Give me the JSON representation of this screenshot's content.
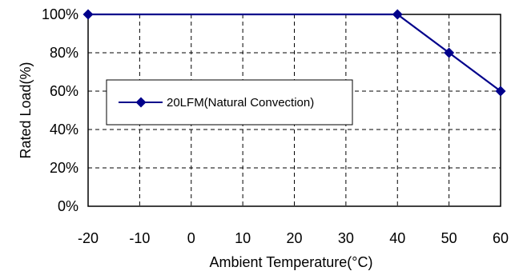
{
  "chart_data": {
    "type": "line",
    "xlabel": "Ambient Temperature(°C)",
    "ylabel": "Rated Load(%)",
    "x_ticks": [
      "-20",
      "-10",
      "0",
      "10",
      "20",
      "30",
      "40",
      "50",
      "60"
    ],
    "y_ticks": [
      "0%",
      "20%",
      "40%",
      "60%",
      "80%",
      "100%"
    ],
    "xlim": [
      -20,
      60
    ],
    "ylim": [
      0,
      100
    ],
    "grid": true,
    "grid_style": "dashed",
    "legend_position": "left-middle",
    "series": [
      {
        "name": "20LFM(Natural Convection)",
        "color": "#00008B",
        "marker": "diamond",
        "x": [
          -20,
          40,
          50,
          60
        ],
        "y": [
          100,
          100,
          80,
          60
        ]
      }
    ]
  }
}
